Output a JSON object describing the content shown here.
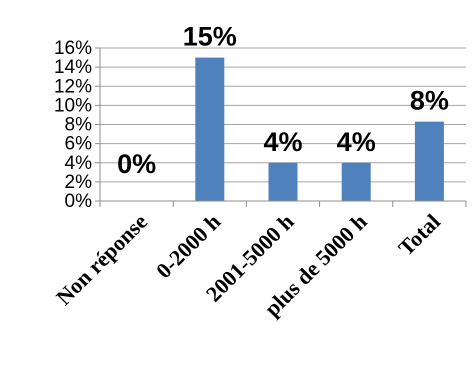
{
  "chart_data": {
    "type": "bar",
    "categories": [
      "Non réponse",
      "0-2000 h",
      "2001-5000 h",
      "plus de 5000 h",
      "Total"
    ],
    "values": [
      0,
      15,
      4,
      4,
      8.3
    ],
    "data_labels": [
      "0%",
      "15%",
      "4%",
      "4%",
      "8%"
    ],
    "yticks": [
      "0%",
      "2%",
      "4%",
      "6%",
      "8%",
      "10%",
      "12%",
      "14%",
      "16%"
    ],
    "ylim": [
      0,
      16
    ],
    "ytick_step": 2,
    "grid": true,
    "legend": "none",
    "colors": {
      "bar": "#4f81bd",
      "grid": "#a6a6a6",
      "axis": "#8c8c8c",
      "text": "#000000"
    }
  }
}
